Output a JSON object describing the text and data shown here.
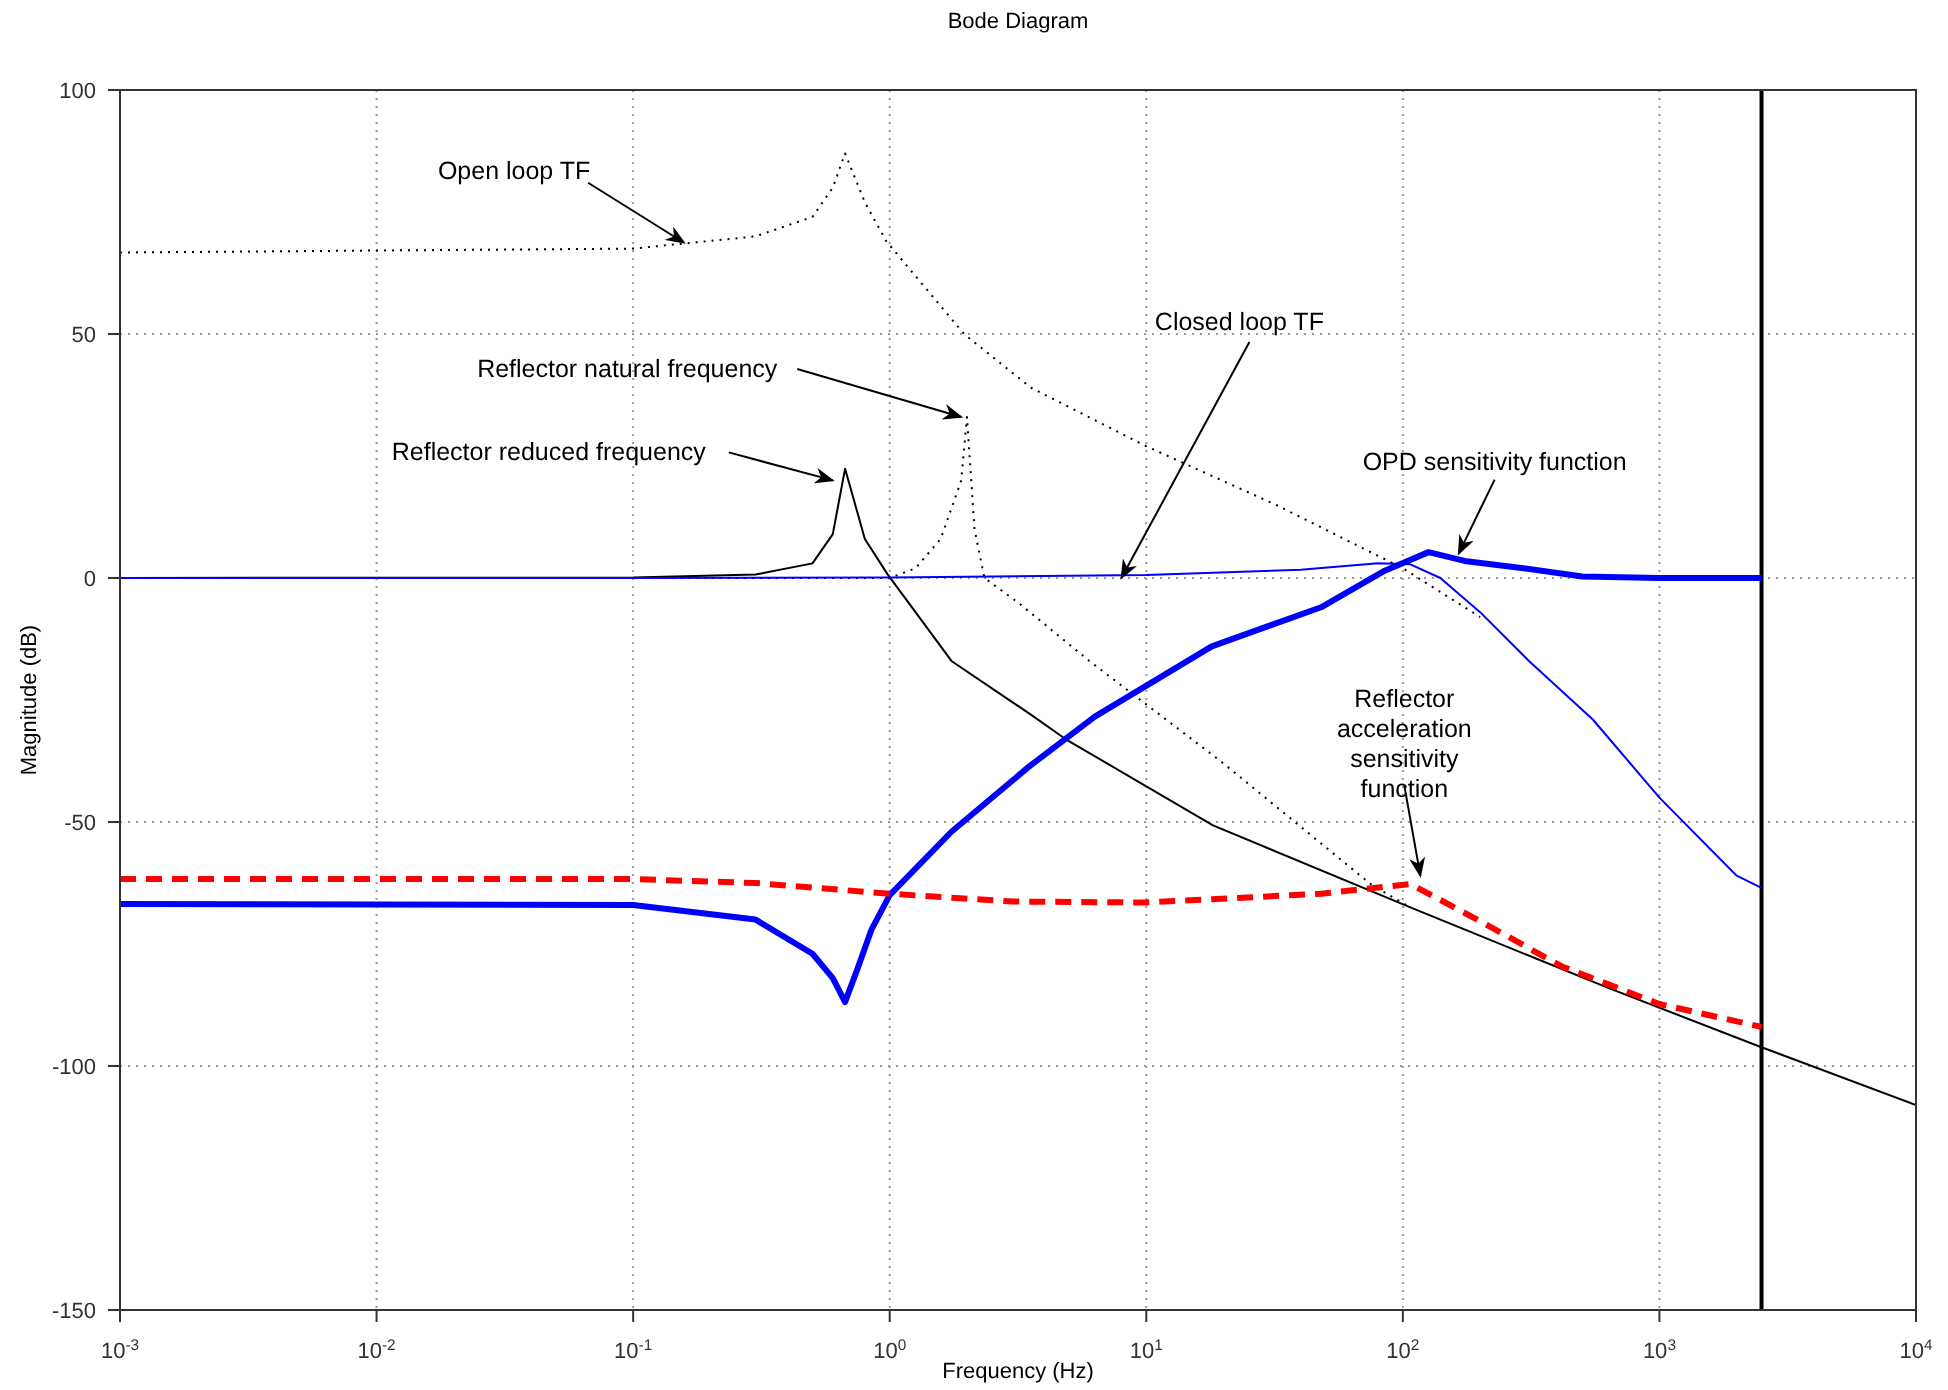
{
  "chart_data": {
    "type": "line",
    "title": "Bode Diagram",
    "xlabel": "Frequency (Hz)",
    "ylabel": "Magnitude (dB)",
    "log": "x",
    "grid": true,
    "marker": "none",
    "xlim": [
      0.001,
      10000
    ],
    "ylim": [
      -150,
      100
    ],
    "xticks": [
      {
        "value": 0.001,
        "label": "10$^{-3}$"
      },
      {
        "value": 0.01,
        "label": "10$^{-2}$"
      },
      {
        "value": 0.1,
        "label": "10$^{-1}$"
      },
      {
        "value": 1,
        "label": "10$^{0}$"
      },
      {
        "value": 10,
        "label": "10$^{1}$"
      },
      {
        "value": 100,
        "label": "10$^{2}$"
      },
      {
        "value": 1000,
        "label": "10$^{3}$"
      },
      {
        "value": 10000,
        "label": "10$^{4}$"
      }
    ],
    "yticks": [
      -150,
      -100,
      -50,
      0,
      50,
      100
    ],
    "ref_lines": [
      {
        "axis": "x",
        "value": 2500,
        "color": "#000000",
        "line_style": "solid"
      }
    ],
    "annotations": [
      {
        "text": "Open loop TF",
        "x": 0.158,
        "y": 68.7
      },
      {
        "text": "Reflector natural frequency",
        "x": 1.9,
        "y": 33
      },
      {
        "text": "Reflector reduced frequency",
        "x": 0.6,
        "y": 20
      },
      {
        "text": "Closed loop TF",
        "x": 8,
        "y": 0
      },
      {
        "text": "OPD sensitivity function",
        "x": 165,
        "y": 5
      },
      {
        "text": "Reflector acceleration sensitivity function",
        "x": 117,
        "y": -61
      }
    ],
    "series": [
      {
        "color": "#000000",
        "line_style": "dotted",
        "x": [
          0.001,
          0.1,
          0.3,
          0.5,
          0.6,
          0.67,
          0.8,
          0.97,
          1.95,
          3.55,
          10,
          32,
          100,
          200
        ],
        "values": [
          66.7,
          67.5,
          70,
          74,
          80,
          87,
          77,
          69,
          50,
          39,
          27,
          15,
          2,
          -8
        ]
      },
      {
        "color": "#000000",
        "line_style": "dotted",
        "x": [
          0.001,
          1,
          1.26,
          1.58,
          1.9,
          2,
          2.14,
          2.34,
          3.16,
          6,
          20,
          76,
          107
        ],
        "values": [
          0,
          0,
          2,
          8,
          20,
          33,
          10,
          0,
          -5,
          -17,
          -38,
          -63,
          -67.5
        ]
      },
      {
        "color": "#000000",
        "line_style": "solid",
        "x": [
          0.001,
          0.1,
          0.3,
          0.5,
          0.6,
          0.67,
          0.8,
          0.98,
          1.74,
          3.55,
          4.84,
          18.2,
          107,
          631,
          2455,
          10000
        ],
        "values": [
          0,
          0.1,
          0.7,
          3,
          9,
          22.4,
          8,
          0.8,
          -17,
          -28,
          -33,
          -50.7,
          -67.5,
          -84,
          -96,
          -108
        ]
      },
      {
        "color": "#0000ff",
        "line_style": "solid",
        "x": [
          0.001,
          0.1,
          1,
          10,
          40,
          80,
          107,
          140,
          200,
          310,
          550,
          1000,
          2000,
          2500
        ],
        "values": [
          0,
          0,
          0.1,
          0.6,
          1.7,
          3,
          2.8,
          0,
          -7,
          -17,
          -29,
          -45,
          -61,
          -63.5
        ]
      },
      {
        "color": "#0000ff",
        "line_style": "solid",
        "x": [
          0.001,
          0.1,
          0.3,
          0.5,
          0.6,
          0.67,
          0.75,
          0.85,
          1,
          1.74,
          3.5,
          6.3,
          18,
          48,
          85,
          126,
          174,
          295,
          500,
          1000,
          2500
        ],
        "values": [
          -66.8,
          -67,
          -70,
          -77,
          -82,
          -86.9,
          -80,
          -72,
          -65,
          -52,
          -38.6,
          -28.4,
          -14,
          -6,
          1.5,
          5.3,
          3.5,
          2,
          0.3,
          0,
          0
        ]
      },
      {
        "color": "#ff0000",
        "line_style": "dashed",
        "x": [
          0.001,
          0.1,
          0.3,
          1,
          3,
          10,
          48,
          107,
          195,
          417,
          1000,
          2500
        ],
        "values": [
          -61.7,
          -61.7,
          -62.5,
          -64.7,
          -66.3,
          -66.5,
          -64.7,
          -62.7,
          -70,
          -79.6,
          -87.3,
          -92
        ]
      }
    ]
  }
}
